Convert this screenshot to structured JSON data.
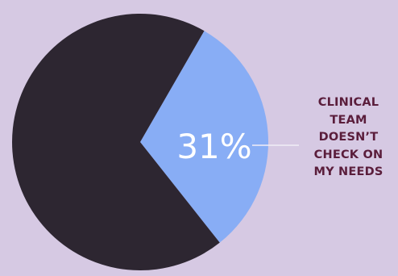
{
  "chart_data": {
    "type": "pie",
    "slices": [
      {
        "value": 31,
        "label": "31%",
        "color": "#88adf5"
      },
      {
        "value": 69,
        "label": "",
        "color": "#2d2631"
      }
    ],
    "annotation": "CLINICAL\nTEAM\nDOESN’T\nCHECK ON\nMY NEEDS",
    "legend": "none",
    "grid": false
  },
  "colors": {
    "background": "#d6c9e3",
    "label_text": "#5a1d3b",
    "leader_line": "#f1edf6",
    "value_text": "#ffffff"
  }
}
